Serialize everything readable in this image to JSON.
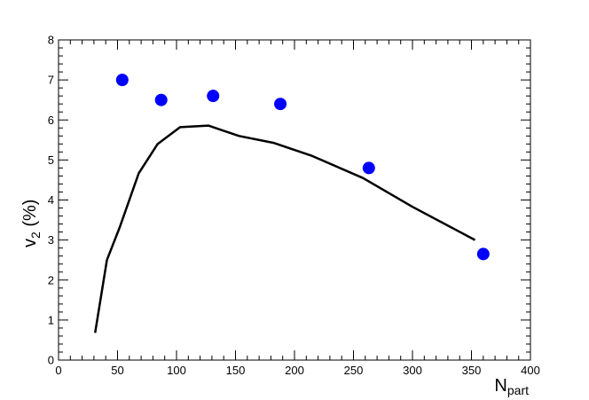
{
  "chart_data": {
    "type": "scatter",
    "title": "",
    "xlabel": {
      "main": "N",
      "sub": "part"
    },
    "ylabel": {
      "main": "v",
      "sub": "2",
      "suffix": " (%)"
    },
    "xlim": [
      0,
      400
    ],
    "ylim": [
      0,
      8
    ],
    "x_ticks": [
      0,
      50,
      100,
      150,
      200,
      250,
      300,
      350,
      400
    ],
    "y_ticks": [
      0,
      1,
      2,
      3,
      4,
      5,
      6,
      7,
      8
    ],
    "grid": false,
    "legend": "none",
    "series": [
      {
        "type": "scatter",
        "color": "#0000ff",
        "points": [
          {
            "x": 54,
            "y": 7.0
          },
          {
            "x": 87,
            "y": 6.5
          },
          {
            "x": 131,
            "y": 6.6
          },
          {
            "x": 188,
            "y": 6.4
          },
          {
            "x": 263,
            "y": 4.8
          },
          {
            "x": 360,
            "y": 2.65
          }
        ]
      },
      {
        "type": "line",
        "color": "#000000",
        "points": [
          {
            "x": 31,
            "y": 0.68
          },
          {
            "x": 41,
            "y": 2.5
          },
          {
            "x": 52,
            "y": 3.33
          },
          {
            "x": 68,
            "y": 4.67
          },
          {
            "x": 84,
            "y": 5.4
          },
          {
            "x": 103,
            "y": 5.82
          },
          {
            "x": 127,
            "y": 5.86
          },
          {
            "x": 153,
            "y": 5.6
          },
          {
            "x": 182,
            "y": 5.43
          },
          {
            "x": 215,
            "y": 5.1
          },
          {
            "x": 258,
            "y": 4.55
          },
          {
            "x": 300,
            "y": 3.83
          },
          {
            "x": 353,
            "y": 3.0
          }
        ]
      }
    ]
  }
}
